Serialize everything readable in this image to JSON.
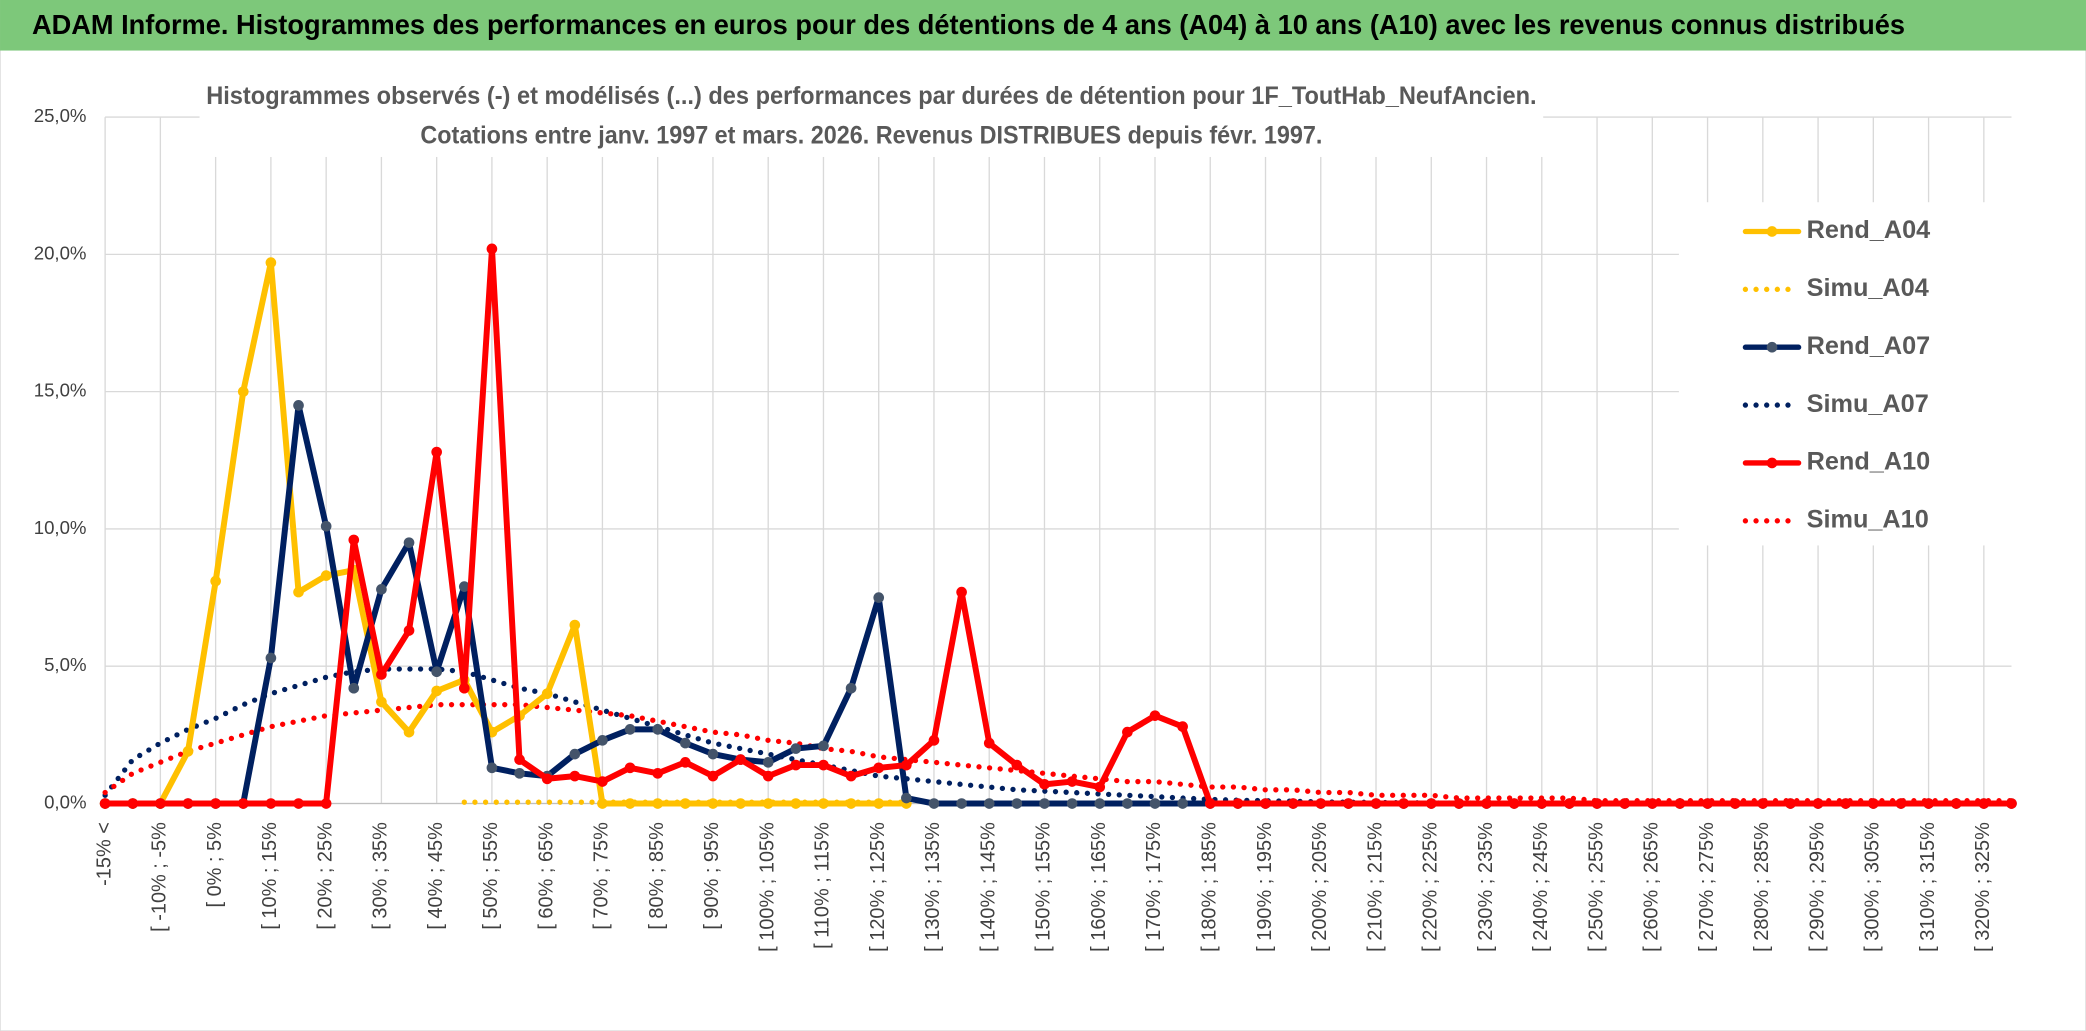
{
  "chart_data": {
    "type": "line",
    "title": "ADAM Informe. Histogrammes des performances en euros pour des détentions de 4 ans (A04) à 10 ans (A10) avec les revenus connus distribués",
    "subtitle": [
      "Histogrammes observés (-) et modélisés (...) des performances par durées de détention pour 1F_ToutHab_NeufAncien.",
      "Cotations entre janv. 1997 et mars. 2026. Revenus DISTRIBUES depuis févr. 1997."
    ],
    "categories": [
      "-15% <",
      null,
      "[ -10% ; -5%",
      null,
      "[ 0% ; 5%",
      null,
      "[ 10% ; 15%",
      null,
      "[ 20% ; 25%",
      null,
      "[ 30% ; 35%",
      null,
      "[ 40% ; 45%",
      null,
      "[ 50% ; 55%",
      null,
      "[ 60% ; 65%",
      null,
      "[ 70% ; 75%",
      null,
      "[ 80% ; 85%",
      null,
      "[ 90% ; 95%",
      null,
      "[ 100% ; 105%",
      null,
      "[ 110% ; 115%",
      null,
      "[ 120% ; 125%",
      null,
      "[ 130% ; 135%",
      null,
      "[ 140% ; 145%",
      null,
      "[ 150% ; 155%",
      null,
      "[ 160% ; 165%",
      null,
      "[ 170% ; 175%",
      null,
      "[ 180% ; 185%",
      null,
      "[ 190% ; 195%",
      null,
      "[ 200% ; 205%",
      null,
      "[ 210% ; 215%",
      null,
      "[ 220% ; 225%",
      null,
      "[ 230% ; 235%",
      null,
      "[ 240% ; 245%",
      null,
      "[ 250% ; 255%",
      null,
      "[ 260% ; 265%",
      null,
      "[ 270% ; 275%",
      null,
      "[ 280% ; 285%",
      null,
      "[ 290% ; 295%",
      null,
      "[ 300% ; 305%",
      null,
      "[ 310% ; 315%",
      null,
      "[ 320% ; 325%",
      null
    ],
    "series": [
      {
        "name": "Rend_A04",
        "color": "#ffc000",
        "style": "solid",
        "values": [
          0,
          0,
          0,
          1.9,
          8.1,
          15.0,
          19.7,
          7.7,
          8.3,
          8.5,
          3.7,
          2.6,
          4.1,
          4.5,
          2.6,
          3.2,
          4.0,
          6.5,
          0,
          0,
          0,
          0,
          0,
          0,
          0,
          0,
          0,
          0,
          0,
          0,
          null,
          null,
          null,
          null,
          null,
          null,
          null,
          null,
          null,
          null,
          null,
          null,
          null,
          null,
          null,
          null,
          null,
          null,
          null,
          null,
          null,
          null,
          null,
          null,
          null,
          null,
          null,
          null,
          null,
          null,
          null,
          null,
          null,
          null,
          null,
          null,
          null,
          null,
          null,
          null
        ]
      },
      {
        "name": "Simu_A04",
        "color": "#ffc000",
        "style": "dotted",
        "values": [
          null,
          null,
          null,
          null,
          null,
          null,
          null,
          null,
          null,
          null,
          null,
          null,
          null,
          0.05,
          0.05,
          0.05,
          0.05,
          0.05,
          0.05,
          0.05,
          0.05,
          0.05,
          0.05,
          0.05,
          0.05,
          0.05,
          0.05,
          0.05,
          0.05,
          0.05,
          null,
          null,
          null,
          null,
          null,
          null,
          null,
          null,
          null,
          null,
          null,
          null,
          null,
          null,
          null,
          null,
          null,
          null,
          null,
          null,
          null,
          null,
          null,
          null,
          null,
          null,
          null,
          null,
          null,
          null,
          null,
          null,
          null,
          null,
          null,
          null,
          null,
          null,
          null,
          null
        ]
      },
      {
        "name": "Rend_A07",
        "color": "#002060",
        "style": "solid",
        "values": [
          0,
          0,
          0,
          0,
          0,
          0,
          5.3,
          14.5,
          10.1,
          4.2,
          7.8,
          9.5,
          4.8,
          7.9,
          1.3,
          1.1,
          1.0,
          1.8,
          2.3,
          2.7,
          2.7,
          2.2,
          1.8,
          1.6,
          1.5,
          2.0,
          2.1,
          4.2,
          7.5,
          0.2,
          0,
          0,
          0,
          0,
          0,
          0,
          0,
          0,
          0,
          0,
          0,
          0,
          0,
          0,
          0,
          0,
          0,
          0,
          0,
          0,
          0,
          0,
          0,
          0,
          0,
          0,
          0,
          0,
          0,
          0,
          0,
          0,
          0,
          0,
          0,
          0,
          0,
          0,
          0,
          0
        ]
      },
      {
        "name": "Simu_A07",
        "color": "#002060",
        "style": "dotted",
        "values": [
          0.3,
          1.6,
          2.2,
          2.7,
          3.1,
          3.6,
          4.0,
          4.3,
          4.6,
          4.8,
          4.9,
          4.9,
          4.9,
          4.8,
          4.5,
          4.2,
          4.0,
          3.7,
          3.4,
          3.1,
          2.8,
          2.5,
          2.2,
          2.0,
          1.8,
          1.6,
          1.4,
          1.2,
          1.0,
          0.9,
          0.8,
          0.7,
          0.6,
          0.5,
          0.45,
          0.4,
          0.35,
          0.3,
          0.25,
          0.2,
          0.15,
          0.12,
          0.1,
          0.08,
          0.06,
          0.05,
          0.04,
          0.03,
          0.02,
          0.02,
          0.01,
          0.01,
          0.01,
          0,
          0,
          0,
          0,
          0,
          0,
          0,
          0,
          0,
          0,
          0,
          0,
          0,
          0,
          0,
          0,
          0
        ]
      },
      {
        "name": "Rend_A10",
        "color": "#ff0000",
        "style": "solid",
        "values": [
          0,
          0,
          0,
          0,
          0,
          0,
          0,
          0,
          0,
          9.6,
          4.7,
          6.3,
          12.8,
          4.2,
          20.2,
          1.6,
          0.9,
          1.0,
          0.8,
          1.3,
          1.1,
          1.5,
          1.0,
          1.6,
          1.0,
          1.4,
          1.4,
          1.0,
          1.3,
          1.4,
          2.3,
          7.7,
          2.2,
          1.4,
          0.7,
          0.8,
          0.6,
          2.6,
          3.2,
          2.8,
          0,
          0,
          0,
          0,
          0,
          0,
          0,
          0,
          0,
          0,
          0,
          0,
          0,
          0,
          0,
          0,
          0,
          0,
          0,
          0,
          0,
          0,
          0,
          0,
          0,
          0,
          0,
          0,
          0,
          0
        ]
      },
      {
        "name": "Simu_A10",
        "color": "#ff0000",
        "style": "dotted",
        "values": [
          0.4,
          1.1,
          1.5,
          1.9,
          2.2,
          2.5,
          2.8,
          3.0,
          3.2,
          3.3,
          3.4,
          3.5,
          3.6,
          3.6,
          3.6,
          3.6,
          3.5,
          3.4,
          3.3,
          3.2,
          3.0,
          2.8,
          2.6,
          2.5,
          2.3,
          2.2,
          2.0,
          1.9,
          1.7,
          1.6,
          1.5,
          1.4,
          1.3,
          1.2,
          1.1,
          1.0,
          0.9,
          0.8,
          0.8,
          0.7,
          0.6,
          0.6,
          0.5,
          0.5,
          0.4,
          0.4,
          0.3,
          0.3,
          0.3,
          0.2,
          0.2,
          0.2,
          0.2,
          0.2,
          0.1,
          0.1,
          0.1,
          0.1,
          0.1,
          0.1,
          0.1,
          0.1,
          0.1,
          0.1,
          0.1,
          0.1,
          0.1,
          0.1,
          0.1,
          0.1
        ]
      }
    ],
    "ylim": [
      0,
      25
    ],
    "yticks": [
      {
        "value": 0,
        "label": "0,0%"
      },
      {
        "value": 5,
        "label": "5,0%"
      },
      {
        "value": 10,
        "label": "10,0%"
      },
      {
        "value": 15,
        "label": "15,0%"
      },
      {
        "value": 20,
        "label": "20,0%"
      },
      {
        "value": 25,
        "label": "25,0%"
      }
    ],
    "grid": true,
    "legend": "right"
  }
}
